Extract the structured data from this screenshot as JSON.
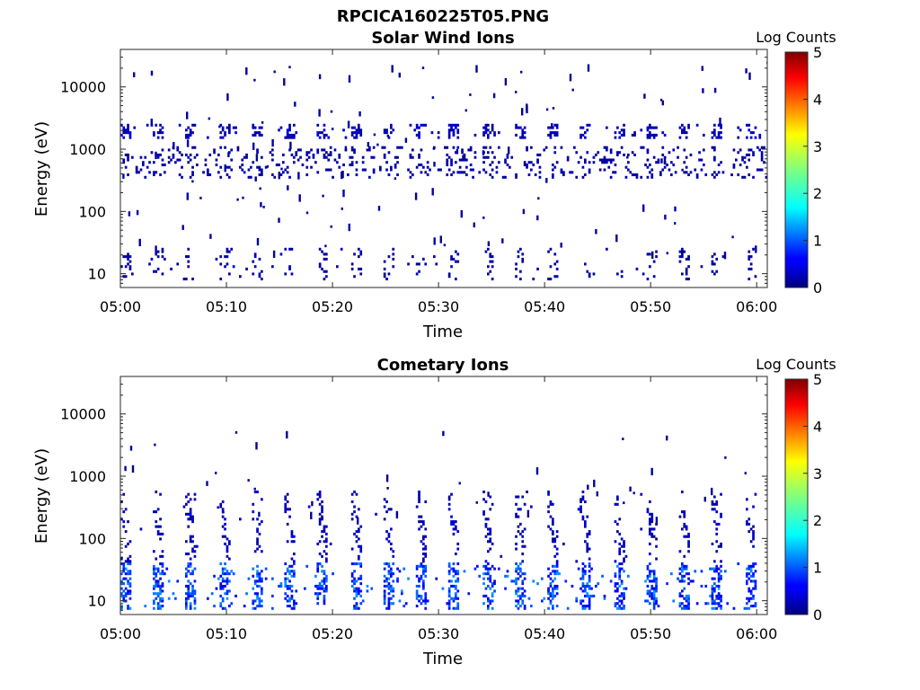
{
  "figure_title": "RPCICA160225T05.PNG",
  "chart_data": [
    {
      "type": "heatmap",
      "title": "Solar Wind Ions",
      "xlabel": "Time",
      "ylabel": "Energy (eV)",
      "x_ticks": [
        "05:00",
        "05:10",
        "05:20",
        "05:30",
        "05:40",
        "05:50",
        "06:00"
      ],
      "y_ticks": [
        "10",
        "100",
        "1000",
        "10000"
      ],
      "y_scale": "log",
      "ylim": [
        6,
        40000
      ],
      "xlim_minutes": [
        0,
        61
      ],
      "colorbar": {
        "label": "Log Counts",
        "ticks": [
          "0",
          "1",
          "2",
          "3",
          "4",
          "5"
        ],
        "range": [
          0,
          5
        ],
        "colormap": "jet"
      },
      "pattern": {
        "sweep_period_minutes": 3.1,
        "bands": [
          {
            "energy_min": 1500,
            "energy_max": 2600,
            "log_count": 0.3,
            "density": 0.85,
            "sweep_phased": true
          },
          {
            "energy_min": 350,
            "energy_max": 1100,
            "log_count": 0.2,
            "density": 0.45,
            "sweep_phased": false
          },
          {
            "energy_min": 8,
            "energy_max": 25,
            "log_count": 0.2,
            "density": 0.3,
            "sweep_phased": true
          }
        ],
        "scatter": {
          "energy_min": 20,
          "energy_max": 25000,
          "log_count": 0.15,
          "count": 140
        }
      }
    },
    {
      "type": "heatmap",
      "title": "Cometary Ions",
      "xlabel": "Time",
      "ylabel": "Energy (eV)",
      "x_ticks": [
        "05:00",
        "05:10",
        "05:20",
        "05:30",
        "05:40",
        "05:50",
        "06:00"
      ],
      "y_ticks": [
        "10",
        "100",
        "1000",
        "10000"
      ],
      "y_scale": "log",
      "ylim": [
        6,
        40000
      ],
      "xlim_minutes": [
        0,
        61
      ],
      "colorbar": {
        "label": "Log Counts",
        "ticks": [
          "0",
          "1",
          "2",
          "3",
          "4",
          "5"
        ],
        "range": [
          0,
          5
        ],
        "colormap": "jet"
      },
      "pattern": {
        "sweep_period_minutes": 3.1,
        "bands": [
          {
            "energy_min": 7,
            "energy_max": 40,
            "log_count": 1.0,
            "density": 0.9,
            "sweep_phased": true
          },
          {
            "energy_min": 40,
            "energy_max": 600,
            "log_count": 0.3,
            "density": 0.55,
            "sweep_phased": true
          }
        ],
        "scatter": {
          "energy_min": 200,
          "energy_max": 5000,
          "log_count": 0.1,
          "count": 40
        }
      }
    }
  ]
}
